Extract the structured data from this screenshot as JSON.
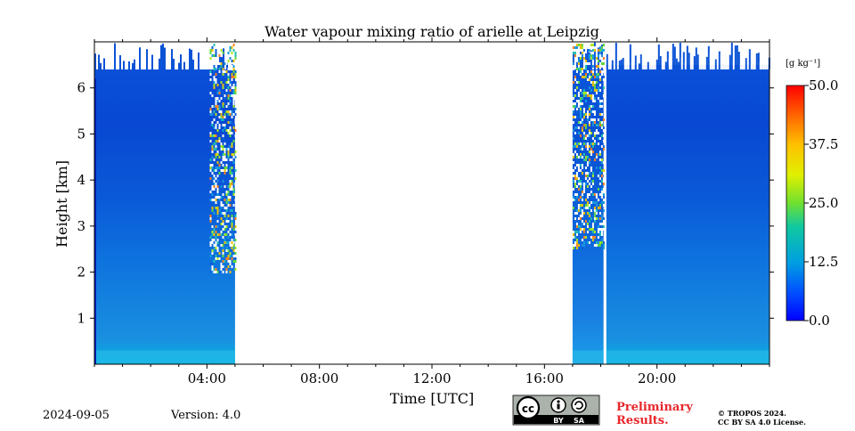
{
  "chart_data": {
    "type": "heatmap",
    "title": "Water vapour mixing ratio of arielle at Leipzig",
    "xlabel": "Time [UTC]",
    "ylabel": "Height [km]",
    "x_units": "hours UTC",
    "xlim": [
      0,
      24
    ],
    "ylim": [
      0,
      7
    ],
    "x_tick_labels": [
      "04:00",
      "08:00",
      "12:00",
      "16:00",
      "20:00"
    ],
    "x_tick_values": [
      4,
      8,
      12,
      16,
      20
    ],
    "y_ticks": [
      1,
      2,
      3,
      4,
      5,
      6
    ],
    "colorbar": {
      "label": "[g kg⁻¹]",
      "range": [
        0,
        50
      ],
      "ticks": [
        "0.0",
        "12.5",
        "25.0",
        "37.5",
        "50.0"
      ],
      "colormap": [
        "#0000ff",
        "#0080ff",
        "#00c0c0",
        "#40e040",
        "#ffff00",
        "#ff8000",
        "#ff0000"
      ]
    },
    "data_intervals_hours": [
      [
        0.0,
        5.0
      ],
      [
        17.0,
        18.1
      ],
      [
        18.2,
        24.0
      ]
    ],
    "typical_values_g_per_kg": {
      "near_surface": 8,
      "mid_level": 5,
      "upper_level": 3
    }
  },
  "footer": {
    "date": "2024-09-05",
    "version": "Version: 4.0",
    "preliminary": "Preliminary Results.",
    "preliminary_line1": "Preliminary",
    "preliminary_line2": "Results.",
    "copyright_line1": "© TROPOS 2024.",
    "copyright_line2": "CC BY SA 4.0 License.",
    "license_badge": "CC BY SA",
    "badge_cc": "cc",
    "badge_by": "BY",
    "badge_sa": "SA"
  }
}
